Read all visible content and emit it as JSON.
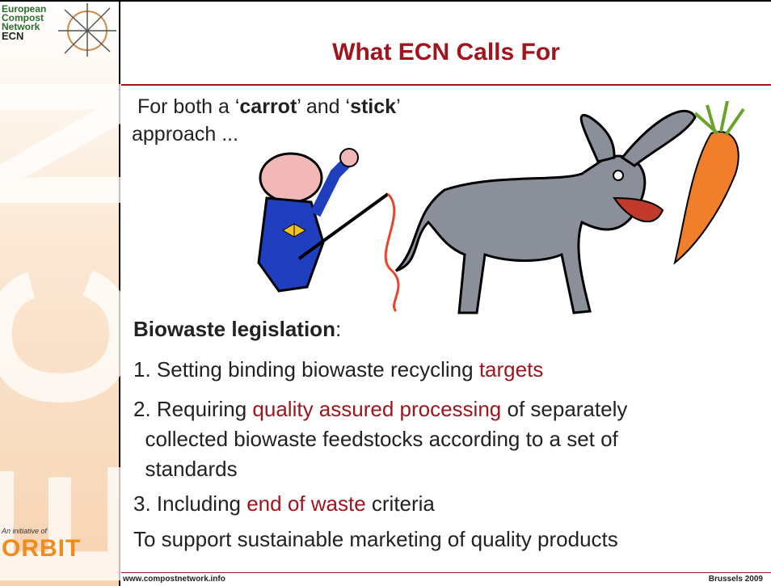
{
  "logo": {
    "lines": [
      "European",
      "Compost",
      "Network",
      "ECN"
    ]
  },
  "watermark": "ECN",
  "initiative": {
    "caption": "An initiative of",
    "name": "ORBIT"
  },
  "title": "What ECN Calls For",
  "intro": {
    "runs": [
      "For both a ‘",
      "carrot",
      "’ and ‘",
      "stick",
      "’",
      "approach ..."
    ]
  },
  "heading": {
    "runs": [
      "Biowaste legislation",
      ":"
    ]
  },
  "items": [
    {
      "runs": [
        "1. Setting binding biowaste recycling ",
        "targets"
      ]
    },
    {
      "runs": [
        "2. Requiring ",
        "quality assured processing",
        " of separately",
        "collected biowaste feedstocks according to a set of",
        "standards"
      ]
    },
    {
      "runs": [
        "3. Including ",
        "end of waste",
        " criteria"
      ]
    }
  ],
  "closing": "To support sustainable marketing of quality products",
  "footer": {
    "left": "www.compostnetwork.info",
    "right": "Brussels 2009"
  }
}
